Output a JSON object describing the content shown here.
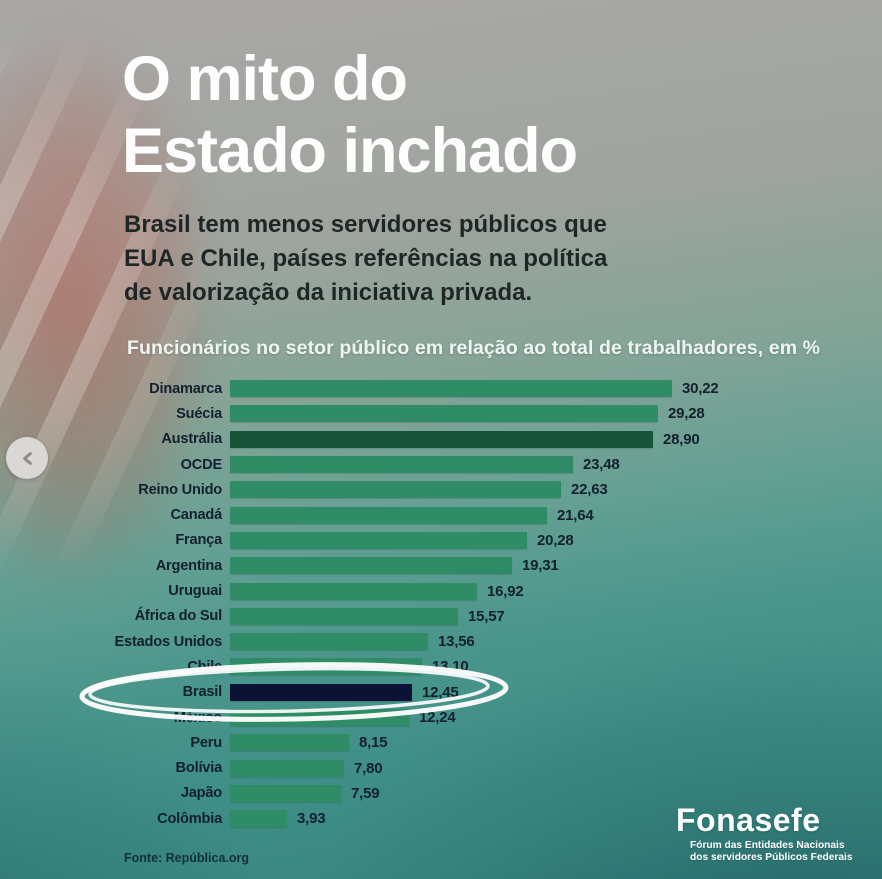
{
  "page": {
    "title_lines": [
      "O mito do",
      "Estado inchado"
    ],
    "subtitle_lines": [
      "Brasil tem menos servidores públicos que",
      "EUA e Chile, países referências na política",
      "de valorização da iniciativa privada."
    ],
    "source": "Fonte: República.org"
  },
  "carousel": {
    "prev_button": "previous-slide"
  },
  "logo": {
    "wordmark": "Fonasefe",
    "tagline_lines": [
      "Fórum das Entidades Nacionais",
      "dos servidores Públicos Federais"
    ]
  },
  "colors": {
    "bar_normal": "#2f8c66",
    "bar_dark": "#17543a",
    "bar_highlight": "#0d1133",
    "label_text": "#13202e",
    "title_text": "#fdfdfd",
    "annotation": "#ffffff"
  },
  "chart_data": {
    "type": "bar",
    "orientation": "horizontal",
    "title": "Funcionários no setor público em relação ao total de trabalhadores, em %",
    "xlabel": "",
    "ylabel": "",
    "xlim": [
      0,
      31
    ],
    "grid": false,
    "legend": false,
    "value_format": "comma-decimal",
    "categories": [
      "Dinamarca",
      "Suécia",
      "Austrália",
      "OCDE",
      "Reino Unido",
      "Canadá",
      "França",
      "Argentina",
      "Uruguai",
      "África do Sul",
      "Estados Unidos",
      "Chile",
      "Brasil",
      "México",
      "Peru",
      "Bolívia",
      "Japão",
      "Colômbia"
    ],
    "rows": [
      {
        "label": "Dinamarca",
        "value": 30.22,
        "value_label": "30,22",
        "variant": "normal"
      },
      {
        "label": "Suécia",
        "value": 29.28,
        "value_label": "29,28",
        "variant": "normal"
      },
      {
        "label": "Austrália",
        "value": 28.9,
        "value_label": "28,90",
        "variant": "dark"
      },
      {
        "label": "OCDE",
        "value": 23.48,
        "value_label": "23,48",
        "variant": "normal"
      },
      {
        "label": "Reino Unido",
        "value": 22.63,
        "value_label": "22,63",
        "variant": "normal"
      },
      {
        "label": "Canadá",
        "value": 21.64,
        "value_label": "21,64",
        "variant": "normal"
      },
      {
        "label": "França",
        "value": 20.28,
        "value_label": "20,28",
        "variant": "normal"
      },
      {
        "label": "Argentina",
        "value": 19.31,
        "value_label": "19,31",
        "variant": "normal"
      },
      {
        "label": "Uruguai",
        "value": 16.92,
        "value_label": "16,92",
        "variant": "normal"
      },
      {
        "label": "África do Sul",
        "value": 15.57,
        "value_label": "15,57",
        "variant": "normal"
      },
      {
        "label": "Estados Unidos",
        "value": 13.56,
        "value_label": "13,56",
        "variant": "normal"
      },
      {
        "label": "Chile",
        "value": 13.1,
        "value_label": "13,10",
        "variant": "normal"
      },
      {
        "label": "Brasil",
        "value": 12.45,
        "value_label": "12,45",
        "variant": "highlight"
      },
      {
        "label": "México",
        "value": 12.24,
        "value_label": "12,24",
        "variant": "normal"
      },
      {
        "label": "Peru",
        "value": 8.15,
        "value_label": "8,15",
        "variant": "normal"
      },
      {
        "label": "Bolívia",
        "value": 7.8,
        "value_label": "7,80",
        "variant": "normal"
      },
      {
        "label": "Japão",
        "value": 7.59,
        "value_label": "7,59",
        "variant": "normal"
      },
      {
        "label": "Colômbia",
        "value": 3.93,
        "value_label": "3,93",
        "variant": "normal"
      }
    ],
    "annotations": [
      {
        "type": "hand-drawn-ellipse",
        "target": "Brasil",
        "color": "#ffffff"
      }
    ]
  }
}
